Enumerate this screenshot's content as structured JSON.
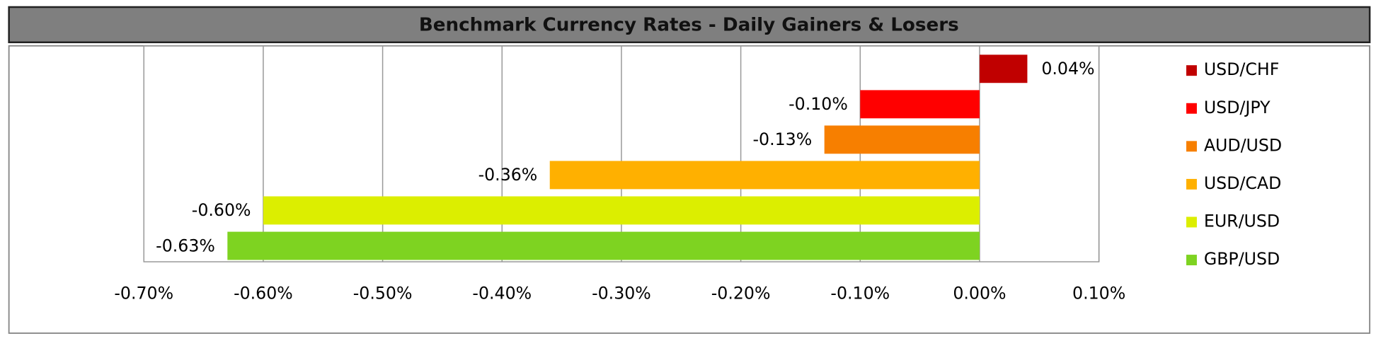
{
  "chart_data": {
    "type": "bar",
    "orientation": "horizontal",
    "title": "Benchmark Currency Rates - Daily Gainers & Losers",
    "categories": [
      "USD/CHF",
      "USD/JPY",
      "AUD/USD",
      "USD/CAD",
      "EUR/USD",
      "GBP/USD"
    ],
    "values": [
      0.04,
      -0.1,
      -0.13,
      -0.36,
      -0.6,
      -0.63
    ],
    "value_labels": [
      "0.04%",
      "-0.10%",
      "-0.13%",
      "-0.36%",
      "-0.60%",
      "-0.63%"
    ],
    "colors": [
      "#c00000",
      "#ff0000",
      "#f77f00",
      "#ffb000",
      "#dcee00",
      "#7ed321"
    ],
    "xlim": [
      -0.7,
      0.1
    ],
    "xticks": [
      {
        "value": -0.7,
        "label": "-0.70%"
      },
      {
        "value": -0.6,
        "label": "-0.60%"
      },
      {
        "value": -0.5,
        "label": "-0.50%"
      },
      {
        "value": -0.4,
        "label": "-0.40%"
      },
      {
        "value": -0.3,
        "label": "-0.30%"
      },
      {
        "value": -0.2,
        "label": "-0.20%"
      },
      {
        "value": -0.1,
        "label": "-0.10%"
      },
      {
        "value": 0,
        "label": "0.00%"
      },
      {
        "value": 0.1,
        "label": "0.10%"
      }
    ],
    "grid": true,
    "legend": "right"
  }
}
